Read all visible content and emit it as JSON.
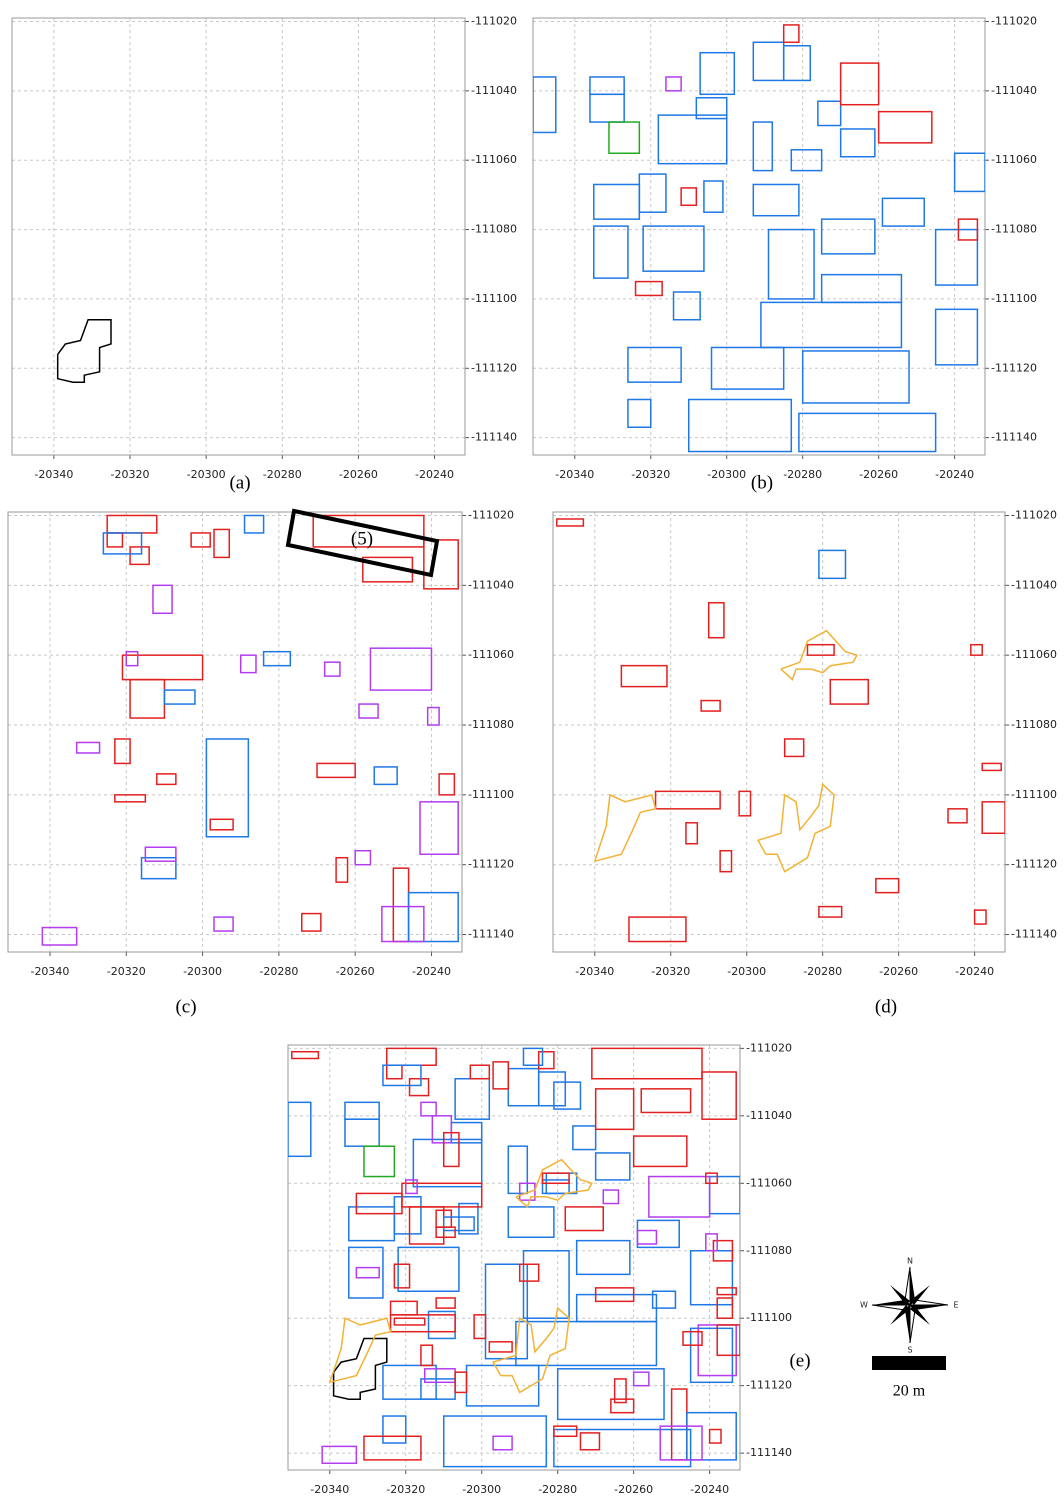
{
  "chart_data": [
    {
      "type": "map",
      "label": "(a)",
      "xlim": [
        -20351,
        -20232
      ],
      "ylim": [
        -111145,
        -111019
      ],
      "xticks": [
        -20340,
        -20320,
        -20300,
        -20280,
        -20260,
        -20240
      ],
      "yticks": [
        -111020,
        -111040,
        -111060,
        -111080,
        -111100,
        -111120,
        -111140
      ],
      "grid": true,
      "features": [
        {
          "color": "#000000",
          "points": [
            [
              -20339,
              -111116
            ],
            [
              -20337,
              -111113
            ],
            [
              -20333,
              -111112
            ],
            [
              -20331,
              -111106
            ],
            [
              -20325,
              -111106
            ],
            [
              -20325,
              -111113
            ],
            [
              -20328,
              -111114
            ],
            [
              -20328,
              -111121
            ],
            [
              -20332,
              -111122
            ],
            [
              -20332,
              -111124
            ],
            [
              -20335,
              -111124
            ],
            [
              -20339,
              -111123
            ],
            [
              -20339,
              -111116
            ]
          ]
        }
      ]
    },
    {
      "type": "map",
      "label": "(b)",
      "xlim": [
        -20351,
        -20232
      ],
      "ylim": [
        -111145,
        -111019
      ],
      "xticks": [
        -20340,
        -20320,
        -20300,
        -20280,
        -20260,
        -20240
      ],
      "yticks": [
        -111020,
        -111040,
        -111060,
        -111080,
        -111100,
        -111120,
        -111140
      ],
      "grid": true,
      "features": [
        {
          "color": "#1e78e6",
          "rects": [
            [
              -20351,
              -111036,
              -20345,
              -111052
            ],
            [
              -20336,
              -111036,
              -20327,
              -111041
            ],
            [
              -20336,
              -111041,
              -20327,
              -111049
            ],
            [
              -20318,
              -111047,
              -20300,
              -111061
            ],
            [
              -20307,
              -111029,
              -20298,
              -111041
            ],
            [
              -20308,
              -111042,
              -20300,
              -111048
            ],
            [
              -20293,
              -111026,
              -20285,
              -111037
            ],
            [
              -20285,
              -111027,
              -20278,
              -111037
            ],
            [
              -20276,
              -111043,
              -20270,
              -111050
            ],
            [
              -20270,
              -111051,
              -20261,
              -111059
            ],
            [
              -20283,
              -111057,
              -20275,
              -111063
            ],
            [
              -20293,
              -111049,
              -20288,
              -111063
            ],
            [
              -20240,
              -111058,
              -20232,
              -111069
            ],
            [
              -20335,
              -111067,
              -20323,
              -111077
            ],
            [
              -20323,
              -111064,
              -20316,
              -111075
            ],
            [
              -20306,
              -111066,
              -20301,
              -111075
            ],
            [
              -20293,
              -111067,
              -20281,
              -111076
            ],
            [
              -20289,
              -111080,
              -20277,
              -111100
            ],
            [
              -20275,
              -111077,
              -20261,
              -111087
            ],
            [
              -20259,
              -111071,
              -20248,
              -111079
            ],
            [
              -20245,
              -111080,
              -20234,
              -111096
            ],
            [
              -20335,
              -111079,
              -20326,
              -111094
            ],
            [
              -20322,
              -111079,
              -20306,
              -111092
            ],
            [
              -20314,
              -111098,
              -20307,
              -111106
            ],
            [
              -20275,
              -111093,
              -20254,
              -111101
            ],
            [
              -20291,
              -111101,
              -20254,
              -111114
            ],
            [
              -20245,
              -111103,
              -20234,
              -111119
            ],
            [
              -20326,
              -111114,
              -20312,
              -111124
            ],
            [
              -20304,
              -111114,
              -20285,
              -111126
            ],
            [
              -20280,
              -111115,
              -20252,
              -111130
            ],
            [
              -20326,
              -111129,
              -20320,
              -111137
            ],
            [
              -20310,
              -111129,
              -20283,
              -111144
            ],
            [
              -20281,
              -111133,
              -20245,
              -111144
            ]
          ]
        },
        {
          "color": "#e32020",
          "rects": [
            [
              -20285,
              -111021,
              -20281,
              -111026
            ],
            [
              -20270,
              -111032,
              -20260,
              -111044
            ],
            [
              -20260,
              -111046,
              -20246,
              -111055
            ],
            [
              -20312,
              -111068,
              -20308,
              -111073
            ],
            [
              -20239,
              -111077,
              -20234,
              -111083
            ],
            [
              -20324,
              -111095,
              -20317,
              -111099
            ]
          ]
        },
        {
          "color": "#b43cf0",
          "rects": [
            [
              -20316,
              -111036,
              -20312,
              -111040
            ]
          ]
        },
        {
          "color": "#22aa22",
          "rects": [
            [
              -20331,
              -111049,
              -20323,
              -111058
            ]
          ]
        }
      ]
    },
    {
      "type": "map",
      "label": "(c)",
      "annotation": "(5)",
      "xlim": [
        -20351,
        -20232
      ],
      "ylim": [
        -111145,
        -111019
      ],
      "xticks": [
        -20340,
        -20320,
        -20300,
        -20280,
        -20260,
        -20240
      ],
      "yticks": [
        -111020,
        -111040,
        -111060,
        -111080,
        -111100,
        -111120,
        -111140
      ],
      "grid": true,
      "features": [
        {
          "color": "#e32020",
          "rects": [
            [
              -20325,
              -111020,
              -20312,
              -111025
            ],
            [
              -20325,
              -111025,
              -20321,
              -111029
            ],
            [
              -20319,
              -111029,
              -20314,
              -111034
            ],
            [
              -20303,
              -111025,
              -20298,
              -111029
            ],
            [
              -20297,
              -111024,
              -20293,
              -111032
            ],
            [
              -20271,
              -111020,
              -20242,
              -111029
            ],
            [
              -20258,
              -111032,
              -20245,
              -111039
            ],
            [
              -20242,
              -111027,
              -20233,
              -111041
            ],
            [
              -20321,
              -111060,
              -20300,
              -111067
            ],
            [
              -20319,
              -111067,
              -20310,
              -111078
            ],
            [
              -20323,
              -111084,
              -20319,
              -111091
            ],
            [
              -20312,
              -111094,
              -20307,
              -111097
            ],
            [
              -20323,
              -111100,
              -20315,
              -111102
            ],
            [
              -20270,
              -111091,
              -20260,
              -111095
            ],
            [
              -20238,
              -111094,
              -20234,
              -111100
            ],
            [
              -20298,
              -111107,
              -20292,
              -111110
            ],
            [
              -20265,
              -111118,
              -20262,
              -111125
            ],
            [
              -20250,
              -111121,
              -20246,
              -111142
            ],
            [
              -20274,
              -111134,
              -20269,
              -111139
            ]
          ]
        },
        {
          "color": "#1e78e6",
          "rects": [
            [
              -20326,
              -111025,
              -20316,
              -111031
            ],
            [
              -20289,
              -111020,
              -20284,
              -111025
            ],
            [
              -20284,
              -111059,
              -20277,
              -111063
            ],
            [
              -20310,
              -111070,
              -20302,
              -111074
            ],
            [
              -20299,
              -111084,
              -20288,
              -111112
            ],
            [
              -20316,
              -111118,
              -20307,
              -111124
            ],
            [
              -20255,
              -111092,
              -20249,
              -111097
            ],
            [
              -20246,
              -111128,
              -20233,
              -111142
            ]
          ]
        },
        {
          "color": "#b43cf0",
          "rects": [
            [
              -20333,
              -111085,
              -20327,
              -111088
            ],
            [
              -20320,
              -111059,
              -20317,
              -111063
            ],
            [
              -20313,
              -111040,
              -20308,
              -111048
            ],
            [
              -20290,
              -111060,
              -20286,
              -111065
            ],
            [
              -20268,
              -111062,
              -20264,
              -111066
            ],
            [
              -20256,
              -111058,
              -20240,
              -111070
            ],
            [
              -20259,
              -111074,
              -20254,
              -111078
            ],
            [
              -20241,
              -111075,
              -20238,
              -111080
            ],
            [
              -20243,
              -111102,
              -20233,
              -111117
            ],
            [
              -20260,
              -111116,
              -20256,
              -111120
            ],
            [
              -20253,
              -111132,
              -20242,
              -111142
            ],
            [
              -20297,
              -111135,
              -20292,
              -111139
            ],
            [
              -20315,
              -111115,
              -20307,
              -111119
            ],
            [
              -20342,
              -111138,
              -20333,
              -111143
            ]
          ]
        }
      ]
    },
    {
      "type": "map",
      "label": "(d)",
      "xlim": [
        -20351,
        -20232
      ],
      "ylim": [
        -111145,
        -111019
      ],
      "xticks": [
        -20340,
        -20320,
        -20300,
        -20280,
        -20260,
        -20240
      ],
      "yticks": [
        -111020,
        -111040,
        -111060,
        -111080,
        -111100,
        -111120,
        -111140
      ],
      "grid": true,
      "features": [
        {
          "color": "#e32020",
          "rects": [
            [
              -20350,
              -111021,
              -20343,
              -111023
            ],
            [
              -20310,
              -111045,
              -20306,
              -111055
            ],
            [
              -20284,
              -111057,
              -20277,
              -111060
            ],
            [
              -20241,
              -111057,
              -20238,
              -111060
            ],
            [
              -20278,
              -111067,
              -20268,
              -111074
            ],
            [
              -20333,
              -111063,
              -20321,
              -111069
            ],
            [
              -20312,
              -111073,
              -20307,
              -111076
            ],
            [
              -20290,
              -111084,
              -20285,
              -111089
            ],
            [
              -20238,
              -111091,
              -20233,
              -111093
            ],
            [
              -20324,
              -111099,
              -20307,
              -111104
            ],
            [
              -20302,
              -111099,
              -20299,
              -111106
            ],
            [
              -20316,
              -111108,
              -20313,
              -111114
            ],
            [
              -20247,
              -111104,
              -20242,
              -111108
            ],
            [
              -20238,
              -111102,
              -20232,
              -111111
            ],
            [
              -20307,
              -111116,
              -20304,
              -111122
            ],
            [
              -20266,
              -111124,
              -20260,
              -111128
            ],
            [
              -20281,
              -111132,
              -20275,
              -111135
            ],
            [
              -20240,
              -111133,
              -20237,
              -111137
            ],
            [
              -20331,
              -111135,
              -20316,
              -111142
            ]
          ]
        },
        {
          "color": "#1e78e6",
          "rects": [
            [
              -20281,
              -111030,
              -20274,
              -111038
            ]
          ]
        },
        {
          "color": "#f2b233",
          "points": [
            [
              -20291,
              -111064
            ],
            [
              -20286,
              -111062
            ],
            [
              -20284,
              -111056
            ],
            [
              -20279,
              -111053
            ],
            [
              -20274,
              -111059
            ],
            [
              -20271,
              -111060
            ],
            [
              -20272,
              -111062
            ],
            [
              -20278,
              -111063
            ],
            [
              -20280,
              -111065
            ],
            [
              -20283,
              -111064
            ],
            [
              -20287,
              -111064
            ],
            [
              -20288,
              -111067
            ],
            [
              -20291,
              -111064
            ]
          ]
        },
        {
          "color": "#f2b233",
          "points": [
            [
              -20340,
              -111119
            ],
            [
              -20337,
              -111109
            ],
            [
              -20336,
              -111100
            ],
            [
              -20332,
              -111102
            ],
            [
              -20325,
              -111100
            ],
            [
              -20324,
              -111104
            ],
            [
              -20328,
              -111105
            ],
            [
              -20330,
              -111110
            ],
            [
              -20333,
              -111117
            ],
            [
              -20340,
              -111119
            ]
          ]
        },
        {
          "color": "#f2b233",
          "points": [
            [
              -20295,
              -111117
            ],
            [
              -20297,
              -111113
            ],
            [
              -20291,
              -111111
            ],
            [
              -20290,
              -111100
            ],
            [
              -20287,
              -111102
            ],
            [
              -20286,
              -111110
            ],
            [
              -20283,
              -111106
            ],
            [
              -20281,
              -111103
            ],
            [
              -20280,
              -111097
            ],
            [
              -20277,
              -111100
            ],
            [
              -20278,
              -111109
            ],
            [
              -20282,
              -111111
            ],
            [
              -20284,
              -111118
            ],
            [
              -20290,
              -111122
            ],
            [
              -20292,
              -111117
            ],
            [
              -20295,
              -111117
            ]
          ]
        }
      ]
    },
    {
      "type": "map",
      "label": "(e)",
      "overlay": true,
      "xlim": [
        -20351,
        -20232
      ],
      "ylim": [
        -111145,
        -111019
      ],
      "xticks": [
        -20340,
        -20320,
        -20300,
        -20280,
        -20260,
        -20240
      ],
      "yticks": [
        -111020,
        -111040,
        -111060,
        -111080,
        -111100,
        -111120,
        -111140
      ],
      "grid": true,
      "features": []
    }
  ],
  "compass": {
    "n": "N",
    "e": "E",
    "s": "S",
    "w": "W"
  },
  "scale_bar": "20 m"
}
